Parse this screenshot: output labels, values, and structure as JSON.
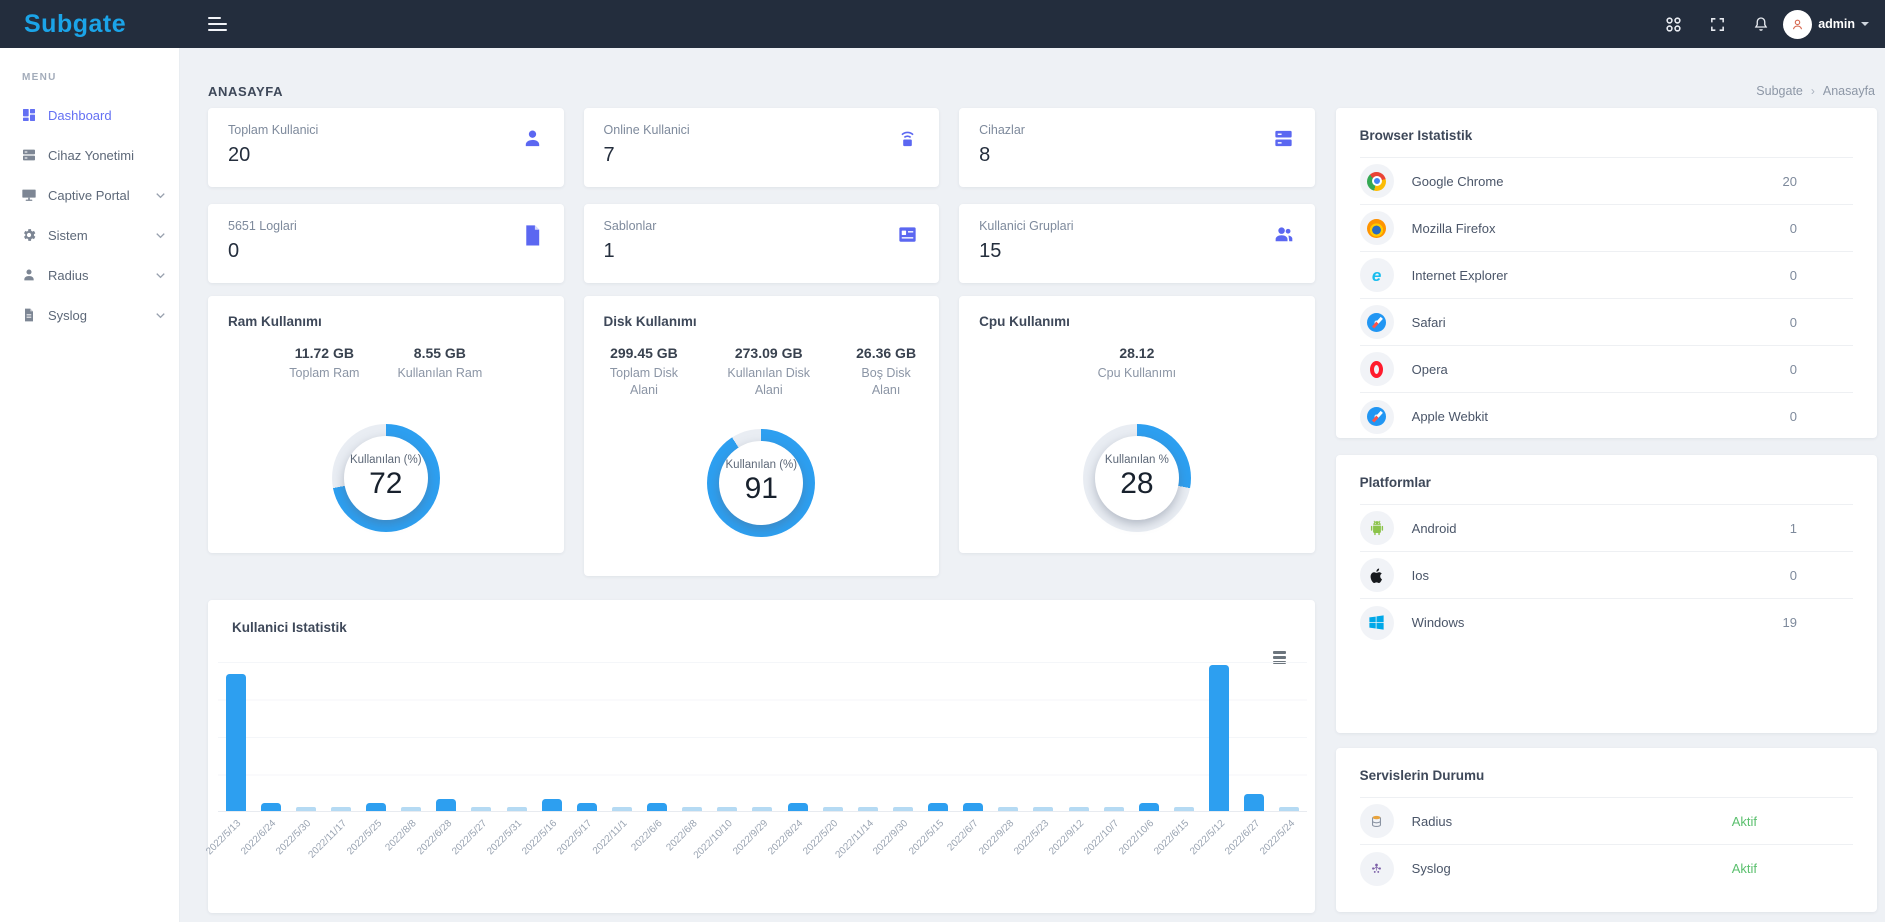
{
  "navbar": {
    "logo": "Subgate",
    "user": {
      "name": "admin"
    }
  },
  "page": {
    "title": "ANASAYFA",
    "breadcrumb": {
      "root": "Subgate",
      "separator": "›",
      "current": "Anasayfa"
    }
  },
  "sidebar": {
    "menu_label": "MENU",
    "items": [
      {
        "label": "Dashboard",
        "icon": "dashboard-icon",
        "active": true,
        "expandable": false
      },
      {
        "label": "Cihaz Yonetimi",
        "icon": "server-icon",
        "active": false,
        "expandable": false
      },
      {
        "label": "Captive Portal",
        "icon": "monitor-icon",
        "active": false,
        "expandable": true
      },
      {
        "label": "Sistem",
        "icon": "gear-icon",
        "active": false,
        "expandable": true
      },
      {
        "label": "Radius",
        "icon": "user-icon",
        "active": false,
        "expandable": true
      },
      {
        "label": "Syslog",
        "icon": "file-icon",
        "active": false,
        "expandable": true
      }
    ]
  },
  "stats": [
    {
      "label": "Toplam Kullanici",
      "value": "20",
      "icon": "user-icon"
    },
    {
      "label": "Online Kullanici",
      "value": "7",
      "icon": "wireless-router-icon"
    },
    {
      "label": "Cihazlar",
      "value": "8",
      "icon": "server-stack-icon"
    },
    {
      "label": "5651 Loglari",
      "value": "0",
      "icon": "document-icon"
    },
    {
      "label": "Sablonlar",
      "value": "1",
      "icon": "template-card-icon"
    },
    {
      "label": "Kullanici Gruplari",
      "value": "15",
      "icon": "user-group-icon"
    }
  ],
  "usage": {
    "ram": {
      "title": "Ram Kullanımı",
      "metrics": [
        {
          "value": "11.72 GB",
          "label": "Toplam Ram"
        },
        {
          "value": "8.55 GB",
          "label": "Kullanılan Ram"
        }
      ],
      "gauge_label": "Kullanılan (%)",
      "percent": 72
    },
    "disk": {
      "title": "Disk Kullanımı",
      "metrics": [
        {
          "value": "299.45 GB",
          "label": "Toplam Disk Alani"
        },
        {
          "value": "273.09 GB",
          "label": "Kullanılan Disk Alani"
        },
        {
          "value": "26.36 GB",
          "label": "Boş Disk Alanı"
        }
      ],
      "gauge_label": "Kullanılan (%)",
      "percent": 91
    },
    "cpu": {
      "title": "Cpu Kullanımı",
      "metrics": [
        {
          "value": "28.12",
          "label": "Cpu Kullanımı"
        }
      ],
      "gauge_label": "Kullanılan %",
      "percent": 28
    }
  },
  "chart_data": {
    "type": "bar",
    "title": "Kullanici Istatistik",
    "categories": [
      "2022/5/13",
      "2022/6/24",
      "2022/5/30",
      "2022/11/17",
      "2022/5/25",
      "2022/8/8",
      "2022/6/28",
      "2022/5/27",
      "2022/5/31",
      "2022/5/16",
      "2022/5/17",
      "2022/11/1",
      "2022/6/6",
      "2022/6/8",
      "2022/10/10",
      "2022/9/29",
      "2022/8/24",
      "2022/5/20",
      "2022/11/14",
      "2022/9/30",
      "2022/5/15",
      "2022/6/7",
      "2022/9/28",
      "2022/5/23",
      "2022/9/12",
      "2022/10/7",
      "2022/10/6",
      "2022/6/15",
      "2022/5/12",
      "2022/6/27",
      "2022/5/24"
    ],
    "values": [
      33,
      2,
      1,
      1,
      2,
      1,
      3,
      1,
      1,
      3,
      2,
      1,
      2,
      1,
      1,
      1,
      2,
      1,
      1,
      1,
      2,
      2,
      1,
      1,
      1,
      1,
      2,
      1,
      35,
      4,
      1
    ],
    "xlabel": "",
    "ylabel": "",
    "ylim": [
      0,
      36
    ],
    "grid": true,
    "legend": "none",
    "x_labels_rotation": -45,
    "bar_color": "#2d9ff0",
    "bar_color_light": "#b5daf3"
  },
  "panels": {
    "browsers": {
      "title": "Browser Istatistik",
      "rows": [
        {
          "label": "Google Chrome",
          "value": "20",
          "icon": "chrome-icon"
        },
        {
          "label": "Mozilla Firefox",
          "value": "0",
          "icon": "firefox-icon"
        },
        {
          "label": "Internet Explorer",
          "value": "0",
          "icon": "internet-explorer-icon"
        },
        {
          "label": "Safari",
          "value": "0",
          "icon": "safari-icon"
        },
        {
          "label": "Opera",
          "value": "0",
          "icon": "opera-icon"
        },
        {
          "label": "Apple Webkit",
          "value": "0",
          "icon": "webkit-icon"
        }
      ]
    },
    "platforms": {
      "title": "Platformlar",
      "rows": [
        {
          "label": "Android",
          "value": "1",
          "icon": "android-icon"
        },
        {
          "label": "Ios",
          "value": "0",
          "icon": "apple-icon"
        },
        {
          "label": "Windows",
          "value": "19",
          "icon": "windows-icon"
        }
      ]
    },
    "services": {
      "title": "Servislerin Durumu",
      "rows": [
        {
          "label": "Radius",
          "status": "Aktif",
          "icon": "database-icon"
        },
        {
          "label": "Syslog",
          "status": "Aktif",
          "icon": "syslog-icon"
        }
      ]
    }
  },
  "colors": {
    "accent": "#5b67f1",
    "chart_blue": "#2d9ff0",
    "gauge_track": "#e9edf3",
    "status_green": "#5bc06e",
    "navbar_bg": "#232d3d",
    "logo_blue": "#1ba4e8",
    "page_bg": "#eef1f5"
  }
}
